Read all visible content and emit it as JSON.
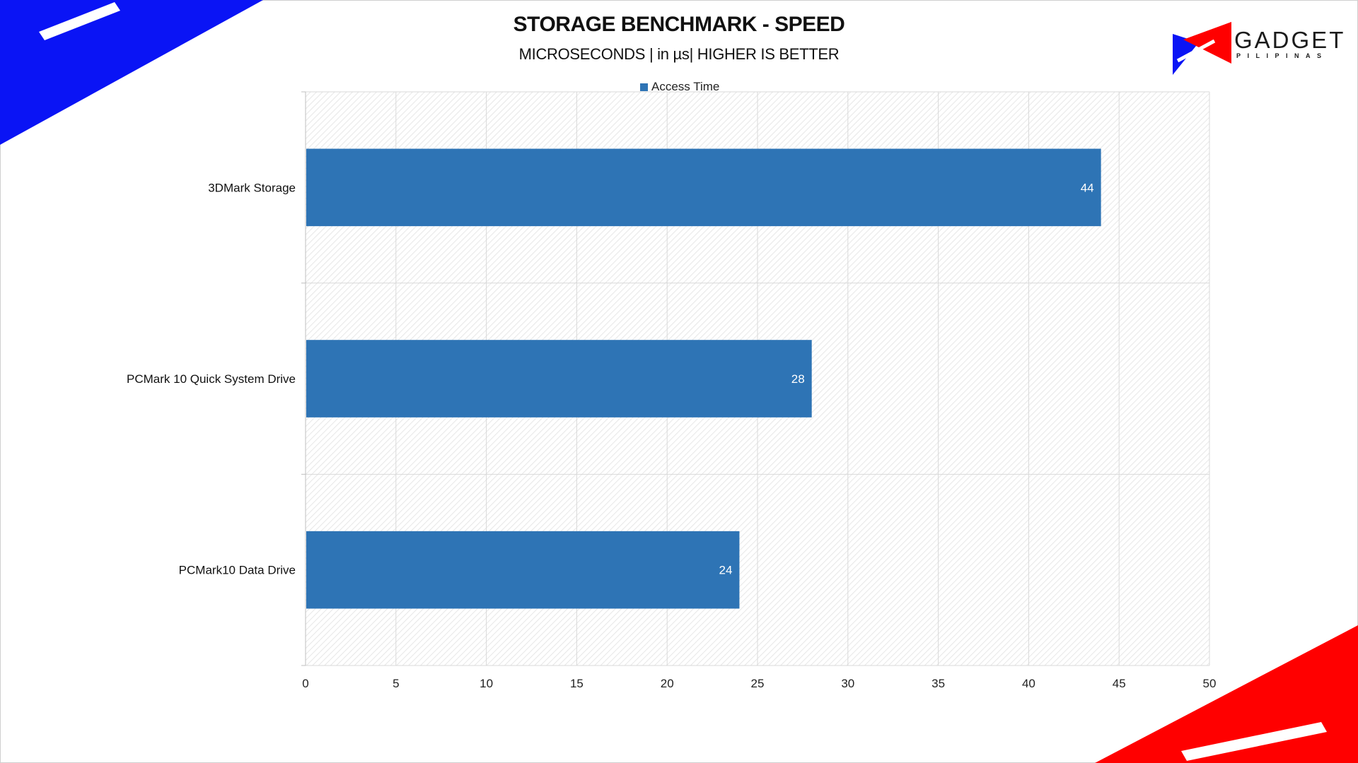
{
  "colors": {
    "bar": "#2e74b5",
    "brand_blue": "#0a14f5",
    "brand_red": "#ff0000",
    "grid": "#d9d9d9"
  },
  "header": {
    "title": "STORAGE BENCHMARK - SPEED",
    "subtitle": "MICROSECONDS | in µs| HIGHER IS BETTER"
  },
  "logo": {
    "name": "GADGET",
    "tagline": "PILIPINAS",
    "icon": "gadget-pilipinas-logo-icon"
  },
  "chart_data": {
    "type": "bar",
    "orientation": "horizontal",
    "title": "STORAGE BENCHMARK - SPEED",
    "subtitle": "MICROSECONDS | in µs| HIGHER IS BETTER",
    "categories": [
      "3DMark Storage",
      "PCMark 10 Quick System Drive",
      "PCMark10 Data Drive"
    ],
    "series": [
      {
        "name": "Access Time",
        "values": [
          44,
          28,
          24
        ],
        "color": "#2e74b5"
      }
    ],
    "xlim": [
      0,
      50
    ],
    "x_ticks": [
      0,
      5,
      10,
      15,
      20,
      25,
      30,
      35,
      40,
      45,
      50
    ],
    "data_labels": true,
    "grid": true,
    "legend": "top-center"
  }
}
